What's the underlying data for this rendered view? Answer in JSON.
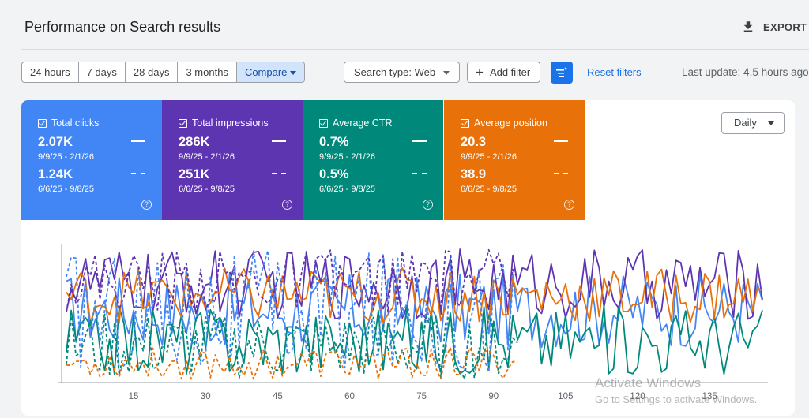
{
  "header": {
    "title": "Performance on Search results",
    "export_label": "EXPORT"
  },
  "filters": {
    "date_ranges": [
      "24 hours",
      "7 days",
      "28 days",
      "3 months"
    ],
    "compare_label": "Compare",
    "search_type": "Search type: Web",
    "add_filter": "Add filter",
    "reset_filters": "Reset filters",
    "last_update": "Last update: 4.5 hours ago"
  },
  "metrics": [
    {
      "label": "Total clicks",
      "current": "2.07K",
      "current_range": "9/9/25 - 2/1/26",
      "previous": "1.24K",
      "previous_range": "6/6/25 - 9/8/25",
      "color": "#4285f4"
    },
    {
      "label": "Total impressions",
      "current": "286K",
      "current_range": "9/9/25 - 2/1/26",
      "previous": "251K",
      "previous_range": "6/6/25 - 9/8/25",
      "color": "#5e35b1"
    },
    {
      "label": "Average CTR",
      "current": "0.7%",
      "current_range": "9/9/25 - 2/1/26",
      "previous": "0.5%",
      "previous_range": "6/6/25 - 9/8/25",
      "color": "#00897b"
    },
    {
      "label": "Average position",
      "current": "20.3",
      "current_range": "9/9/25 - 2/1/26",
      "previous": "38.9",
      "previous_range": "6/6/25 - 9/8/25",
      "color": "#e8710a"
    }
  ],
  "granularity": "Daily",
  "watermark": {
    "line1": "Activate Windows",
    "line2": "Go to Settings to activate Windows."
  },
  "chart_data": {
    "type": "line",
    "x_ticks": [
      "15",
      "30",
      "45",
      "60",
      "75",
      "90",
      "105",
      "120",
      "135"
    ],
    "xlim": [
      1,
      146
    ],
    "grid": false,
    "legend": "none",
    "y_axes": "normalized per metric, no printed labels",
    "series": [
      {
        "metric": "Total clicks",
        "period": "current",
        "style": "solid",
        "color": "#4285f4",
        "n": 146
      },
      {
        "metric": "Total impressions",
        "period": "current",
        "style": "solid",
        "color": "#5e35b1",
        "n": 146
      },
      {
        "metric": "Average CTR",
        "period": "current",
        "style": "solid",
        "color": "#00897b",
        "n": 146
      },
      {
        "metric": "Average position",
        "period": "current",
        "style": "solid",
        "color": "#e8710a",
        "n": 146
      },
      {
        "metric": "Total clicks",
        "period": "previous",
        "style": "dashed",
        "color": "#4285f4",
        "n": 95
      },
      {
        "metric": "Total impressions",
        "period": "previous",
        "style": "dashed",
        "color": "#5e35b1",
        "n": 95
      },
      {
        "metric": "Average CTR",
        "period": "previous",
        "style": "dashed",
        "color": "#00897b",
        "n": 95
      },
      {
        "metric": "Average position",
        "period": "previous",
        "style": "dashed",
        "color": "#e8710a",
        "n": 95
      }
    ]
  }
}
